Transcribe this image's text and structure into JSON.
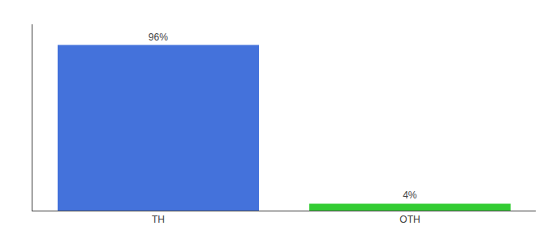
{
  "chart_data": {
    "type": "bar",
    "categories": [
      "TH",
      "OTH"
    ],
    "values": [
      96,
      4
    ],
    "value_labels": [
      "96%",
      "4%"
    ],
    "data_labels": true,
    "colors": [
      "#4472db",
      "#33cc33"
    ],
    "ylim": [
      0,
      108
    ],
    "tick_labels": "x",
    "grid": false
  }
}
